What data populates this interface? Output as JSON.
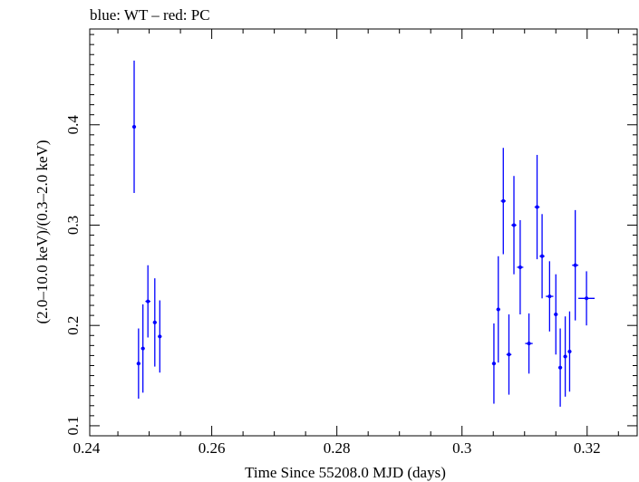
{
  "chart_data": {
    "type": "scatter",
    "title": "blue: WT – red: PC",
    "xlabel": "Time Since 55208.0 MJD (days)",
    "ylabel": "(2.0–10.0 keV)/(0.3–2.0 keV)",
    "xlim": [
      0.2405,
      0.328
    ],
    "ylim": [
      0.09,
      0.4955
    ],
    "xticks": [
      0.24,
      0.26,
      0.28,
      0.3,
      0.32
    ],
    "xtick_labels": [
      "0.24",
      "0.26",
      "0.28",
      "0.3",
      "0.32"
    ],
    "yticks": [
      0.1,
      0.2,
      0.3,
      0.4
    ],
    "ytick_labels": [
      "0.1",
      "0.2",
      "0.3",
      "0.4"
    ],
    "grid": false,
    "series": [
      {
        "name": "WT",
        "color": "#0000ff",
        "points": [
          {
            "x": 0.2476,
            "y": 0.398,
            "xerr": 0.0003,
            "yerr_low": 0.066,
            "yerr_high": 0.066
          },
          {
            "x": 0.2483,
            "y": 0.162,
            "xerr": 0.0003,
            "yerr_low": 0.035,
            "yerr_high": 0.035
          },
          {
            "x": 0.249,
            "y": 0.177,
            "xerr": 0.0003,
            "yerr_low": 0.044,
            "yerr_high": 0.044
          },
          {
            "x": 0.2498,
            "y": 0.224,
            "xerr": 0.0004,
            "yerr_low": 0.036,
            "yerr_high": 0.036
          },
          {
            "x": 0.2509,
            "y": 0.203,
            "xerr": 0.0003,
            "yerr_low": 0.044,
            "yerr_high": 0.044
          },
          {
            "x": 0.2517,
            "y": 0.189,
            "xerr": 0.0003,
            "yerr_low": 0.036,
            "yerr_high": 0.036
          },
          {
            "x": 0.3051,
            "y": 0.162,
            "xerr": 0.0003,
            "yerr_low": 0.04,
            "yerr_high": 0.04
          },
          {
            "x": 0.3058,
            "y": 0.216,
            "xerr": 0.0003,
            "yerr_low": 0.053,
            "yerr_high": 0.053
          },
          {
            "x": 0.3066,
            "y": 0.324,
            "xerr": 0.0004,
            "yerr_low": 0.053,
            "yerr_high": 0.053
          },
          {
            "x": 0.3075,
            "y": 0.171,
            "xerr": 0.0004,
            "yerr_low": 0.04,
            "yerr_high": 0.04
          },
          {
            "x": 0.3083,
            "y": 0.3,
            "xerr": 0.0004,
            "yerr_low": 0.049,
            "yerr_high": 0.049
          },
          {
            "x": 0.3093,
            "y": 0.258,
            "xerr": 0.0005,
            "yerr_low": 0.047,
            "yerr_high": 0.047
          },
          {
            "x": 0.3107,
            "y": 0.182,
            "xerr": 0.0006,
            "yerr_low": 0.03,
            "yerr_high": 0.03
          },
          {
            "x": 0.312,
            "y": 0.318,
            "xerr": 0.0004,
            "yerr_low": 0.052,
            "yerr_high": 0.052
          },
          {
            "x": 0.3128,
            "y": 0.269,
            "xerr": 0.0004,
            "yerr_low": 0.042,
            "yerr_high": 0.042
          },
          {
            "x": 0.314,
            "y": 0.229,
            "xerr": 0.0006,
            "yerr_low": 0.035,
            "yerr_high": 0.035
          },
          {
            "x": 0.315,
            "y": 0.211,
            "xerr": 0.0003,
            "yerr_low": 0.04,
            "yerr_high": 0.04
          },
          {
            "x": 0.3157,
            "y": 0.158,
            "xerr": 0.0003,
            "yerr_low": 0.039,
            "yerr_high": 0.039
          },
          {
            "x": 0.3165,
            "y": 0.169,
            "xerr": 0.0003,
            "yerr_low": 0.04,
            "yerr_high": 0.04
          },
          {
            "x": 0.3172,
            "y": 0.174,
            "xerr": 0.0003,
            "yerr_low": 0.04,
            "yerr_high": 0.04
          },
          {
            "x": 0.3181,
            "y": 0.26,
            "xerr": 0.0005,
            "yerr_low": 0.055,
            "yerr_high": 0.055
          },
          {
            "x": 0.3199,
            "y": 0.227,
            "xerr": 0.0013,
            "yerr_low": 0.027,
            "yerr_high": 0.027
          }
        ]
      }
    ]
  }
}
